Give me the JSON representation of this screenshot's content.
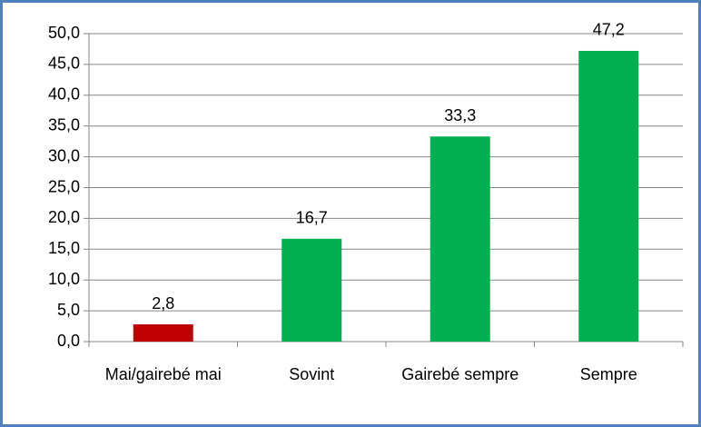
{
  "chart_data": {
    "type": "bar",
    "categories": [
      "Mai/gairebé mai",
      "Sovint",
      "Gairebé sempre",
      "Sempre"
    ],
    "values": [
      2.8,
      16.7,
      33.3,
      47.2
    ],
    "value_labels": [
      "2,8",
      "16,7",
      "33,3",
      "47,2"
    ],
    "colors": [
      "#c00000",
      "#00b050",
      "#00b050",
      "#00b050"
    ],
    "ylim": [
      0,
      50
    ],
    "yticks": [
      {
        "value": 0,
        "label": "0,0"
      },
      {
        "value": 5,
        "label": "5,0"
      },
      {
        "value": 10,
        "label": "10,0"
      },
      {
        "value": 15,
        "label": "15,0"
      },
      {
        "value": 20,
        "label": "20,0"
      },
      {
        "value": 25,
        "label": "25,0"
      },
      {
        "value": 30,
        "label": "30,0"
      },
      {
        "value": 35,
        "label": "35,0"
      },
      {
        "value": 40,
        "label": "40,0"
      },
      {
        "value": 45,
        "label": "45,0"
      },
      {
        "value": 50,
        "label": "50,0"
      }
    ],
    "grid": true
  }
}
